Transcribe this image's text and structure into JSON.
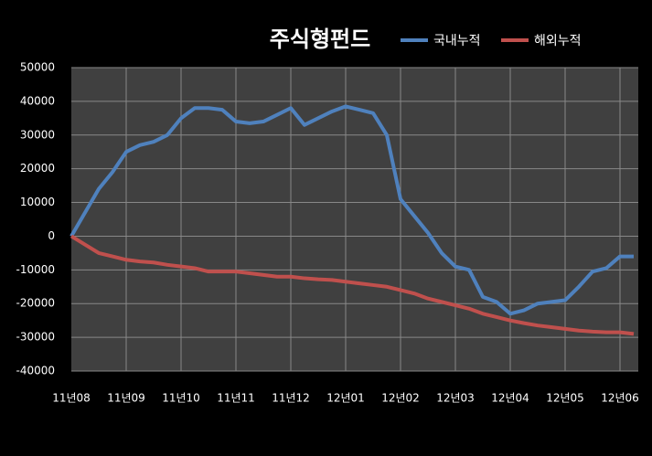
{
  "chart_data": {
    "type": "line",
    "title": "주식형펀드",
    "categories": [
      "11년08",
      null,
      null,
      null,
      "11년09",
      null,
      null,
      null,
      "11년10",
      null,
      null,
      null,
      "11년11",
      null,
      null,
      null,
      "11년12",
      null,
      null,
      null,
      "12년01",
      null,
      null,
      null,
      "12년02",
      null,
      null,
      null,
      "12년03",
      null,
      null,
      null,
      "12년04",
      null,
      null,
      null,
      "12년05",
      null,
      null,
      null,
      "12년06",
      null
    ],
    "series": [
      {
        "name": "국내누적",
        "color": "#4f81bd",
        "values": [
          0,
          7000,
          14000,
          19000,
          25000,
          27000,
          28000,
          30000,
          35000,
          38000,
          38000,
          37500,
          34000,
          33500,
          34000,
          36000,
          38000,
          33000,
          35000,
          37000,
          38500,
          37500,
          36500,
          30000,
          11000,
          6000,
          1000,
          -5000,
          -9000,
          -10000,
          -18000,
          -19500,
          -23000,
          -22000,
          -20000,
          -19500,
          -19000,
          -15000,
          -10500,
          -9500,
          -6000,
          -6000
        ]
      },
      {
        "name": "해외누적",
        "color": "#c0504d",
        "values": [
          0,
          -2500,
          -5000,
          -6000,
          -7000,
          -7500,
          -7800,
          -8500,
          -9000,
          -9500,
          -10500,
          -10500,
          -10500,
          -11000,
          -11500,
          -12000,
          -12000,
          -12500,
          -12800,
          -13000,
          -13500,
          -14000,
          -14500,
          -15000,
          -16000,
          -17000,
          -18500,
          -19500,
          -20500,
          -21500,
          -23000,
          -24000,
          -25000,
          -25800,
          -26500,
          -27000,
          -27500,
          -28000,
          -28300,
          -28500,
          -28500,
          -29000
        ]
      }
    ],
    "ylim": [
      -40000,
      50000
    ],
    "yticks": [
      -40000,
      -30000,
      -20000,
      -10000,
      0,
      10000,
      20000,
      30000,
      40000,
      50000
    ],
    "grid": true
  }
}
